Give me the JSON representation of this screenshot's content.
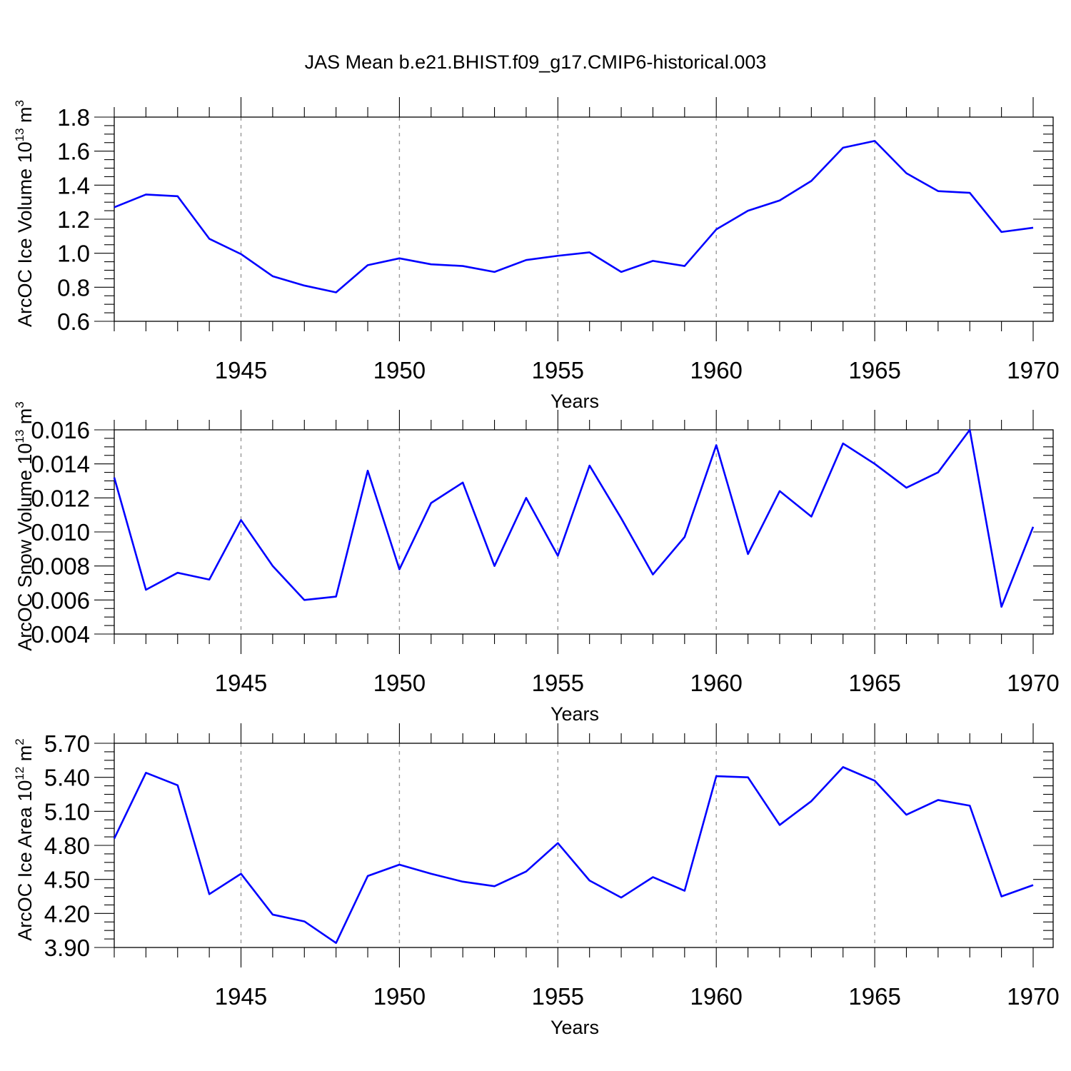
{
  "figure_title": "JAS Mean b.e21.BHIST.f09_g17.CMIP6-historical.003",
  "colors": {
    "line": "#0000ff",
    "grid": "#999999",
    "axis": "#000000"
  },
  "chart_data": [
    {
      "type": "line",
      "title": "JAS Mean b.e21.BHIST.f09_g17.CMIP6-historical.003",
      "xlabel": "Years",
      "ylabel": {
        "main": "ArcOC Ice Volume 10",
        "sup": "13",
        "unit": " m",
        "unit_sup": "3"
      },
      "xlim": [
        1941,
        1970
      ],
      "ylim": [
        0.6,
        1.8
      ],
      "x_ticks": [
        1945,
        1950,
        1955,
        1960,
        1965,
        1970
      ],
      "y_ticks": [
        0.6,
        0.8,
        1.0,
        1.2,
        1.4,
        1.6,
        1.8
      ],
      "y_tick_labels": [
        "0.6",
        "0.8",
        "1.0",
        "1.2",
        "1.4",
        "1.6",
        "1.8"
      ],
      "grid": "vertical dashed at major x ticks",
      "series": [
        {
          "name": "ArcOC Ice Volume",
          "x": [
            1941,
            1942,
            1943,
            1944,
            1945,
            1946,
            1947,
            1948,
            1949,
            1950,
            1951,
            1952,
            1953,
            1954,
            1955,
            1956,
            1957,
            1958,
            1959,
            1960,
            1961,
            1962,
            1963,
            1964,
            1965,
            1966,
            1967,
            1968,
            1969,
            1970
          ],
          "values": [
            1.27,
            1.345,
            1.335,
            1.085,
            0.995,
            0.865,
            0.81,
            0.77,
            0.93,
            0.97,
            0.935,
            0.925,
            0.89,
            0.96,
            0.985,
            1.005,
            0.89,
            0.955,
            0.925,
            1.14,
            1.25,
            1.31,
            1.425,
            1.62,
            1.66,
            1.47,
            1.365,
            1.355,
            1.125,
            1.15
          ]
        }
      ]
    },
    {
      "type": "line",
      "xlabel": "Years",
      "ylabel": {
        "main": "ArcOC Snow Volume 10",
        "sup": "13",
        "unit": " m",
        "unit_sup": "3"
      },
      "xlim": [
        1941,
        1970
      ],
      "ylim": [
        0.004,
        0.016
      ],
      "x_ticks": [
        1945,
        1950,
        1955,
        1960,
        1965,
        1970
      ],
      "y_ticks": [
        0.004,
        0.006,
        0.008,
        0.01,
        0.012,
        0.014,
        0.016
      ],
      "y_tick_labels": [
        "0.004",
        "0.006",
        "0.008",
        "0.010",
        "0.012",
        "0.014",
        "0.016"
      ],
      "grid": "vertical dashed at major x ticks",
      "series": [
        {
          "name": "ArcOC Snow Volume",
          "x": [
            1941,
            1942,
            1943,
            1944,
            1945,
            1946,
            1947,
            1948,
            1949,
            1950,
            1951,
            1952,
            1953,
            1954,
            1955,
            1956,
            1957,
            1958,
            1959,
            1960,
            1961,
            1962,
            1963,
            1964,
            1965,
            1966,
            1967,
            1968,
            1969,
            1970
          ],
          "values": [
            0.0132,
            0.0066,
            0.0076,
            0.0072,
            0.0107,
            0.008,
            0.006,
            0.0062,
            0.0136,
            0.0078,
            0.0117,
            0.0129,
            0.008,
            0.012,
            0.0086,
            0.0139,
            0.0108,
            0.0075,
            0.0097,
            0.0151,
            0.0087,
            0.0124,
            0.0109,
            0.0152,
            0.014,
            0.0126,
            0.0135,
            0.016,
            0.0056,
            0.0103
          ]
        }
      ]
    },
    {
      "type": "line",
      "xlabel": "Years",
      "ylabel": {
        "main": "ArcOC Ice Area 10",
        "sup": "12",
        "unit": " m",
        "unit_sup": "2"
      },
      "xlim": [
        1941,
        1970
      ],
      "ylim": [
        3.9,
        5.7
      ],
      "x_ticks": [
        1945,
        1950,
        1955,
        1960,
        1965,
        1970
      ],
      "y_ticks": [
        3.9,
        4.2,
        4.5,
        4.8,
        5.1,
        5.4,
        5.7
      ],
      "y_tick_labels": [
        "3.90",
        "4.20",
        "4.50",
        "4.80",
        "5.10",
        "5.40",
        "5.70"
      ],
      "grid": "vertical dashed at major x ticks",
      "series": [
        {
          "name": "ArcOC Ice Area",
          "x": [
            1941,
            1942,
            1943,
            1944,
            1945,
            1946,
            1947,
            1948,
            1949,
            1950,
            1951,
            1952,
            1953,
            1954,
            1955,
            1956,
            1957,
            1958,
            1959,
            1960,
            1961,
            1962,
            1963,
            1964,
            1965,
            1966,
            1967,
            1968,
            1969,
            1970
          ],
          "values": [
            4.86,
            5.44,
            5.33,
            4.37,
            4.55,
            4.19,
            4.13,
            3.94,
            4.53,
            4.63,
            4.55,
            4.48,
            4.44,
            4.57,
            4.82,
            4.49,
            4.34,
            4.52,
            4.4,
            5.41,
            5.4,
            4.98,
            5.19,
            5.49,
            5.37,
            5.07,
            5.2,
            5.15,
            4.35,
            4.45
          ]
        }
      ]
    }
  ]
}
